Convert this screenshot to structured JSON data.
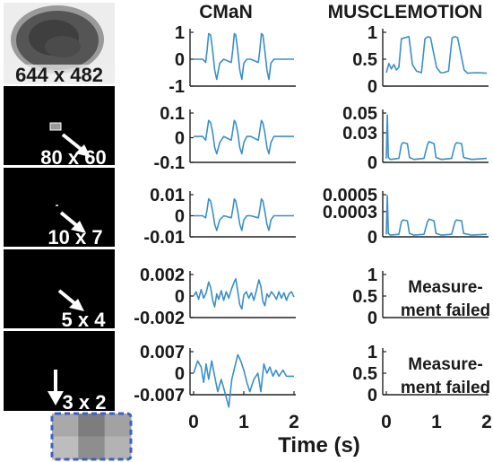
{
  "columns": {
    "left": "CMaN",
    "right": "MUSCLEMOTION"
  },
  "x_axis": {
    "title": "Time (s)",
    "ticks": [
      "0",
      "1",
      "2"
    ],
    "range": [
      0,
      2
    ]
  },
  "colors": {
    "series": "#3a8fc9",
    "axis": "#222222",
    "panel_bg": "#000000",
    "tile_border": "#3a5fc8"
  },
  "rows": [
    {
      "size_label": "644 x 482"
    },
    {
      "size_label": "80 x 60"
    },
    {
      "size_label": "10 x 7"
    },
    {
      "size_label": "5 x 4"
    },
    {
      "size_label": "3 x 2"
    }
  ],
  "failed_text": [
    "Measure-",
    "ment failed"
  ],
  "pixel_tile": {
    "cols": 3,
    "rows": 2,
    "grays": [
      "#a9a9a9",
      "#7d7d7d",
      "#a2a2a2",
      "#bdbdbd",
      "#8e8e8e",
      "#b3b3b3"
    ]
  },
  "chart_data": [
    {
      "type": "line",
      "column": "CMaN",
      "resolution": "644 x 482",
      "ylim": [
        -1,
        1
      ],
      "ytick_labels": [
        "1",
        "0",
        "-1"
      ],
      "ytick_values": [
        1,
        0,
        -1
      ],
      "x": [
        0,
        0.18,
        0.24,
        0.27,
        0.3,
        0.34,
        0.38,
        0.42,
        0.46,
        0.52,
        0.6,
        0.75,
        0.78,
        0.81,
        0.84,
        0.88,
        0.92,
        0.96,
        1.0,
        1.06,
        1.14,
        1.29,
        1.32,
        1.35,
        1.38,
        1.42,
        1.46,
        1.5,
        1.54,
        1.6,
        1.7,
        2.0
      ],
      "y": [
        0,
        0,
        -0.12,
        0.35,
        0.95,
        0.9,
        0.3,
        -0.4,
        -0.75,
        -0.15,
        0,
        -0.12,
        0.35,
        0.95,
        0.9,
        0.3,
        -0.4,
        -0.75,
        -0.15,
        0,
        0,
        -0.12,
        0.35,
        0.95,
        0.9,
        0.3,
        -0.4,
        -0.75,
        -0.15,
        0,
        0,
        0
      ]
    },
    {
      "type": "line",
      "column": "MUSCLEMOTION",
      "resolution": "644 x 482",
      "ylim": [
        0,
        1
      ],
      "ytick_labels": [
        "1",
        "0.5",
        "0"
      ],
      "ytick_values": [
        1,
        0.5,
        0
      ],
      "x": [
        0,
        0.05,
        0.1,
        0.15,
        0.2,
        0.25,
        0.3,
        0.45,
        0.52,
        0.6,
        0.7,
        0.77,
        0.83,
        0.88,
        1.0,
        1.08,
        1.14,
        1.24,
        1.31,
        1.37,
        1.42,
        1.55,
        1.62,
        1.8,
        2.0
      ],
      "y": [
        0.25,
        0.42,
        0.32,
        0.4,
        0.3,
        0.35,
        0.88,
        0.92,
        0.4,
        0.28,
        0.25,
        0.88,
        0.92,
        0.9,
        0.35,
        0.25,
        0.25,
        0.28,
        0.9,
        0.92,
        0.9,
        0.3,
        0.24,
        0.25,
        0.24
      ]
    },
    {
      "type": "line",
      "column": "CMaN",
      "resolution": "80 x 60",
      "ylim": [
        -0.1,
        0.1
      ],
      "ytick_labels": [
        "0.1",
        "0",
        "-0.1"
      ],
      "ytick_values": [
        0.1,
        0,
        -0.1
      ],
      "x": [
        0,
        0.18,
        0.24,
        0.27,
        0.3,
        0.34,
        0.38,
        0.42,
        0.46,
        0.52,
        0.6,
        0.75,
        0.78,
        0.81,
        0.84,
        0.88,
        0.92,
        0.96,
        1.0,
        1.06,
        1.14,
        1.29,
        1.32,
        1.35,
        1.38,
        1.42,
        1.46,
        1.5,
        1.54,
        1.6,
        1.7,
        2.0
      ],
      "y": [
        0.005,
        0.005,
        -0.01,
        0.03,
        0.07,
        0.06,
        0.02,
        -0.04,
        -0.065,
        -0.02,
        0.005,
        -0.01,
        0.03,
        0.07,
        0.06,
        0.02,
        -0.04,
        -0.065,
        -0.02,
        0.005,
        0.005,
        -0.01,
        0.03,
        0.07,
        0.06,
        0.02,
        -0.04,
        -0.065,
        -0.02,
        0.005,
        0.005,
        0.005
      ]
    },
    {
      "type": "line",
      "column": "MUSCLEMOTION",
      "resolution": "80 x 60",
      "ylim": [
        0,
        0.05
      ],
      "ytick_labels": [
        "0.05",
        "0.03",
        "0"
      ],
      "ytick_values": [
        0.05,
        0.03,
        0
      ],
      "x": [
        0,
        0.02,
        0.04,
        0.08,
        0.25,
        0.3,
        0.33,
        0.42,
        0.46,
        0.55,
        0.75,
        0.82,
        0.85,
        0.95,
        0.99,
        1.1,
        1.3,
        1.37,
        1.4,
        1.5,
        1.54,
        1.7,
        2.0
      ],
      "y": [
        0.004,
        0.048,
        0.005,
        0.003,
        0.004,
        0.018,
        0.02,
        0.019,
        0.005,
        0.003,
        0.004,
        0.018,
        0.021,
        0.019,
        0.005,
        0.003,
        0.004,
        0.018,
        0.02,
        0.019,
        0.005,
        0.003,
        0.004
      ]
    },
    {
      "type": "line",
      "column": "CMaN",
      "resolution": "10 x 7",
      "ylim": [
        -0.01,
        0.01
      ],
      "ytick_labels": [
        "0.01",
        "0",
        "-0.01"
      ],
      "ytick_values": [
        0.01,
        0,
        -0.01
      ],
      "x": [
        0,
        0.18,
        0.24,
        0.27,
        0.3,
        0.34,
        0.38,
        0.42,
        0.46,
        0.52,
        0.6,
        0.75,
        0.78,
        0.81,
        0.84,
        0.88,
        0.92,
        0.96,
        1.0,
        1.06,
        1.14,
        1.29,
        1.32,
        1.35,
        1.38,
        1.42,
        1.46,
        1.5,
        1.54,
        1.6,
        1.7,
        2.0
      ],
      "y": [
        0,
        0,
        -0.001,
        0.003,
        0.008,
        0.007,
        0.002,
        -0.004,
        -0.007,
        -0.002,
        0,
        -0.001,
        0.003,
        0.008,
        0.007,
        0.002,
        -0.004,
        -0.007,
        -0.002,
        0,
        0,
        -0.001,
        0.003,
        0.008,
        0.007,
        0.002,
        -0.004,
        -0.007,
        -0.002,
        0,
        0,
        0
      ]
    },
    {
      "type": "line",
      "column": "MUSCLEMOTION",
      "resolution": "10 x 7",
      "ylim": [
        0,
        0.0005
      ],
      "ytick_labels": [
        "0.0005",
        "0.0003",
        "0"
      ],
      "ytick_values": [
        0.0005,
        0.0003,
        0
      ],
      "x": [
        0,
        0.02,
        0.04,
        0.08,
        0.25,
        0.3,
        0.33,
        0.42,
        0.46,
        0.55,
        0.75,
        0.82,
        0.85,
        0.95,
        0.99,
        1.1,
        1.3,
        1.37,
        1.4,
        1.5,
        1.54,
        1.7,
        2.0
      ],
      "y": [
        3e-05,
        0.00049,
        4e-05,
        2e-05,
        3e-05,
        0.00018,
        0.0002,
        0.00019,
        4e-05,
        2e-05,
        3e-05,
        0.00018,
        0.00021,
        0.00019,
        4e-05,
        2e-05,
        3e-05,
        0.00018,
        0.0002,
        0.00019,
        4e-05,
        2e-05,
        3e-05
      ]
    },
    {
      "type": "line",
      "column": "CMaN",
      "resolution": "5 x 4",
      "ylim": [
        -0.002,
        0.002
      ],
      "ytick_labels": [
        "0.002",
        "0",
        "-0.002"
      ],
      "ytick_values": [
        0.002,
        0,
        -0.002
      ],
      "x": [
        0,
        0.05,
        0.1,
        0.15,
        0.2,
        0.25,
        0.3,
        0.34,
        0.38,
        0.42,
        0.46,
        0.5,
        0.55,
        0.6,
        0.65,
        0.7,
        0.75,
        0.8,
        0.84,
        0.88,
        0.92,
        0.96,
        1.0,
        1.05,
        1.1,
        1.15,
        1.2,
        1.25,
        1.3,
        1.34,
        1.38,
        1.42,
        1.46,
        1.5,
        1.55,
        1.6,
        1.65,
        1.7,
        1.75,
        1.8,
        1.85,
        1.9,
        1.95,
        2.0
      ],
      "y": [
        0,
        0.0004,
        -0.0003,
        0.0006,
        -0.0002,
        0.0003,
        0.0013,
        0.0008,
        -0.0004,
        -0.001,
        0.0002,
        -0.0003,
        0.0005,
        -0.0004,
        0.0004,
        -0.0002,
        0.0006,
        0.0012,
        0.0016,
        0.0004,
        -0.0008,
        -0.0012,
        0.0001,
        0.0004,
        -0.0002,
        0.0003,
        -0.0004,
        0.0005,
        0.0015,
        0.0009,
        -0.0005,
        -0.0009,
        0.0002,
        -0.0001,
        0.0004,
        0.0001,
        -0.0003,
        0.0004,
        -0.0002,
        0.0003,
        -0.0004,
        0.0002,
        0.0004,
        -0.0001
      ]
    },
    {
      "type": "line",
      "column": "CMaN",
      "resolution": "3 x 2",
      "ylim": [
        -0.007,
        0.007
      ],
      "ytick_labels": [
        "0.007",
        "0",
        "-0.007"
      ],
      "ytick_values": [
        0.007,
        0,
        -0.007
      ],
      "x": [
        0,
        0.08,
        0.15,
        0.2,
        0.25,
        0.3,
        0.36,
        0.42,
        0.48,
        0.55,
        0.62,
        0.7,
        0.76,
        0.82,
        0.88,
        0.94,
        1.0,
        1.06,
        1.12,
        1.2,
        1.28,
        1.34,
        1.4,
        1.46,
        1.52,
        1.58,
        1.64,
        1.7,
        1.78,
        1.85,
        1.92,
        2.0
      ],
      "y": [
        0,
        0.004,
        0.002,
        -0.003,
        0.003,
        -0.002,
        0.004,
        -0.001,
        -0.006,
        -0.002,
        -0.006,
        -0.011,
        -0.002,
        0.002,
        0.006,
        0.004,
        0.001,
        -0.003,
        -0.006,
        -0.002,
        0.0,
        -0.006,
        0.003,
        0.0,
        0.002,
        -0.001,
        0.001,
        -0.001,
        0.001,
        -0.001,
        -0.001,
        -0.001
      ]
    }
  ]
}
